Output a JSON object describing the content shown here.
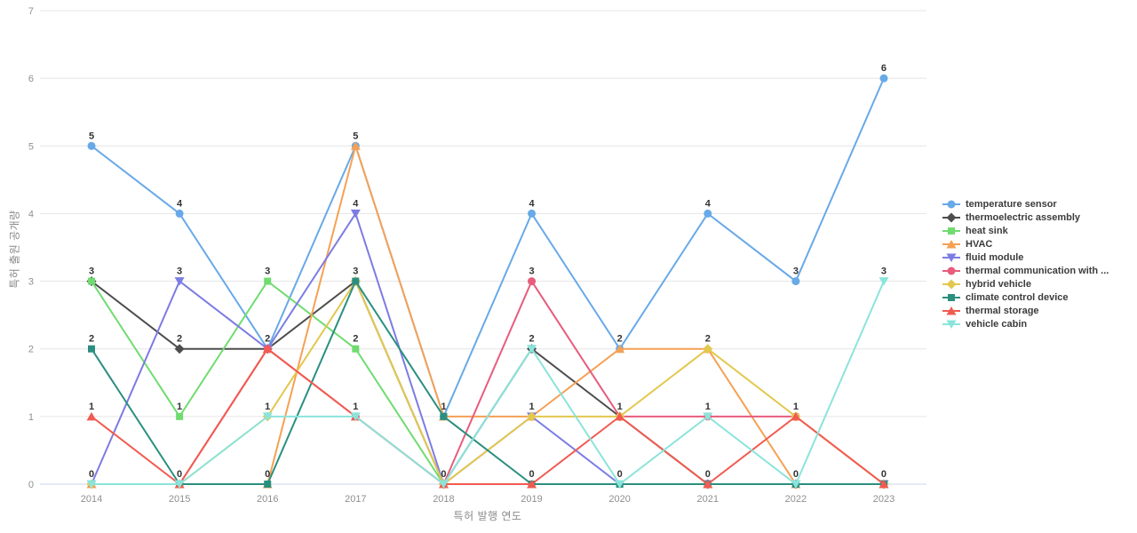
{
  "chart": {
    "xlabel": "특허 발행 연도",
    "ylabel": "특허 출원 공개량"
  },
  "chart_data": {
    "type": "line",
    "title": "",
    "xlabel": "특허 발행 연도",
    "ylabel": "특허 출원 공개량",
    "x": [
      2014,
      2015,
      2016,
      2017,
      2018,
      2019,
      2020,
      2021,
      2022,
      2023
    ],
    "ylim": [
      0,
      7
    ],
    "yticks": [
      0,
      1,
      2,
      3,
      4,
      5,
      6,
      7
    ],
    "grid": true,
    "data_labels": true,
    "legend_position": "right",
    "axis_line_color": "#c9d6ee",
    "grid_color": "#e5e5e5",
    "tick_color": "#8f8f8f",
    "label_color": "#333333",
    "series": [
      {
        "name": "temperature sensor",
        "color": "#68a9e8",
        "marker": "circle",
        "values": [
          5,
          4,
          2,
          5,
          1,
          4,
          2,
          4,
          3,
          6
        ]
      },
      {
        "name": "thermoelectric assembly",
        "color": "#4d4d4d",
        "marker": "diamond",
        "values": [
          3,
          2,
          2,
          3,
          0,
          2,
          1,
          0,
          0,
          0
        ]
      },
      {
        "name": "heat sink",
        "color": "#70dc70",
        "marker": "square",
        "values": [
          3,
          1,
          3,
          2,
          0,
          0,
          0,
          0,
          0,
          0
        ]
      },
      {
        "name": "HVAC",
        "color": "#f5a155",
        "marker": "triangle-up",
        "values": [
          0,
          0,
          0,
          5,
          1,
          1,
          2,
          2,
          0,
          0
        ]
      },
      {
        "name": "fluid module",
        "color": "#7c7ce4",
        "marker": "triangle-down",
        "values": [
          0,
          3,
          2,
          4,
          0,
          1,
          0,
          0,
          0,
          0
        ]
      },
      {
        "name": "thermal communication with ...",
        "color": "#e85c7c",
        "marker": "circle",
        "values": [
          0,
          0,
          2,
          1,
          0,
          3,
          1,
          1,
          1,
          0
        ]
      },
      {
        "name": "hybrid vehicle",
        "color": "#e3c84f",
        "marker": "diamond",
        "values": [
          0,
          0,
          1,
          3,
          0,
          1,
          1,
          2,
          1,
          0
        ]
      },
      {
        "name": "climate control device",
        "color": "#2b8f80",
        "marker": "square",
        "values": [
          2,
          0,
          0,
          3,
          1,
          0,
          0,
          0,
          0,
          0
        ]
      },
      {
        "name": "thermal storage",
        "color": "#f15b51",
        "marker": "triangle-up",
        "values": [
          1,
          0,
          2,
          1,
          0,
          0,
          1,
          0,
          1,
          0
        ]
      },
      {
        "name": "vehicle cabin",
        "color": "#8be4db",
        "marker": "triangle-down",
        "values": [
          0,
          0,
          1,
          1,
          0,
          2,
          0,
          1,
          0,
          3
        ]
      }
    ]
  }
}
